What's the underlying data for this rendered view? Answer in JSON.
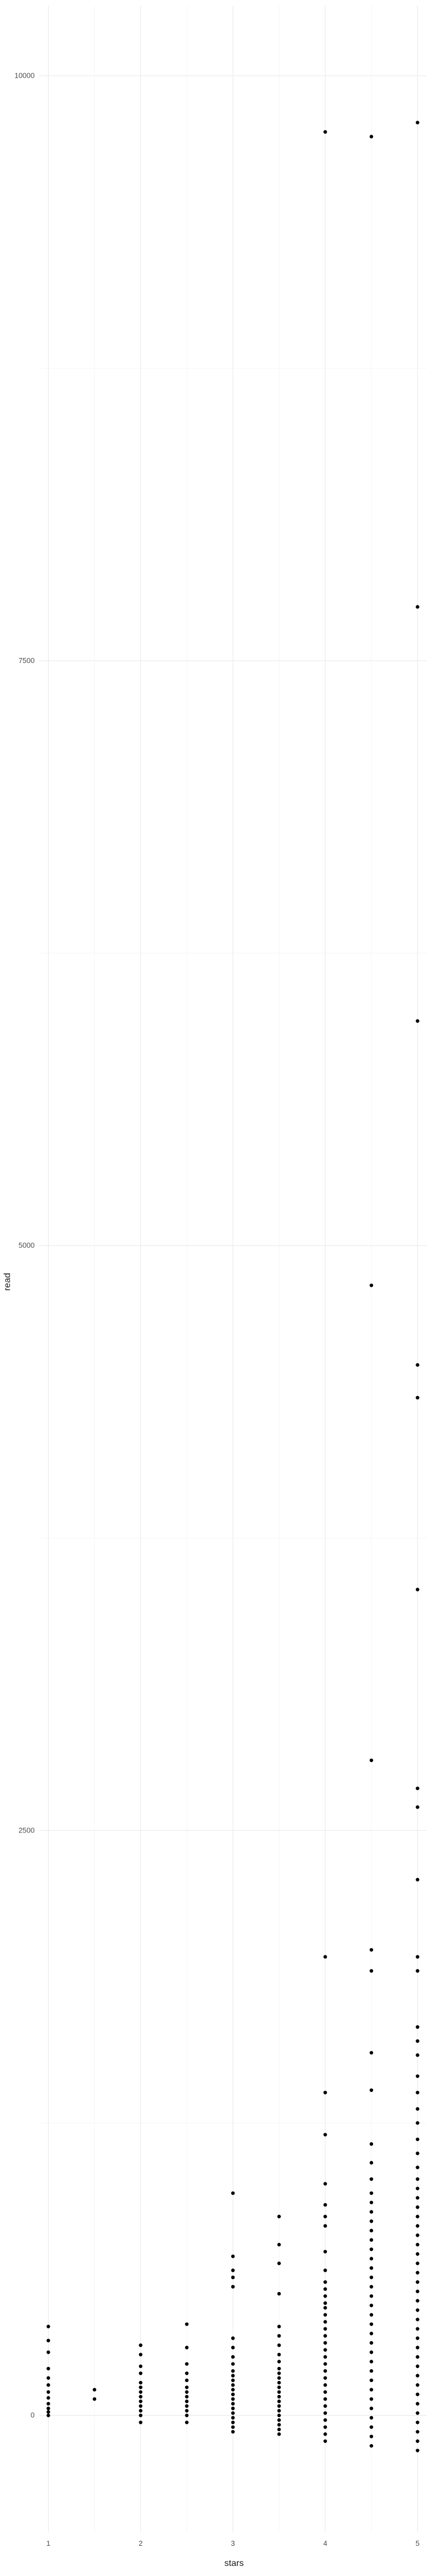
{
  "chart_data": {
    "type": "scatter",
    "title": "",
    "xlabel": "stars",
    "ylabel": "read",
    "xlim": [
      0.9,
      5.1
    ],
    "ylim": [
      -500,
      10300
    ],
    "x_ticks": [
      1,
      2,
      3,
      4,
      5
    ],
    "y_ticks": [
      0,
      2500,
      5000,
      7500,
      10000
    ],
    "grid": true,
    "legend": "none",
    "colors": {
      "point": "#000000",
      "grid_major": "#ebebeb",
      "grid_minor": "#f5f5f5"
    },
    "points": [
      {
        "x": 1,
        "y": 0
      },
      {
        "x": 1,
        "y": 15
      },
      {
        "x": 1,
        "y": 30
      },
      {
        "x": 1,
        "y": 50
      },
      {
        "x": 1,
        "y": 75
      },
      {
        "x": 1,
        "y": 100
      },
      {
        "x": 1,
        "y": 130
      },
      {
        "x": 1,
        "y": 160
      },
      {
        "x": 1,
        "y": 200
      },
      {
        "x": 1,
        "y": 270
      },
      {
        "x": 1,
        "y": 320
      },
      {
        "x": 1,
        "y": 380
      },
      {
        "x": 1.5,
        "y": 70
      },
      {
        "x": 1.5,
        "y": 110
      },
      {
        "x": 2,
        "y": -30
      },
      {
        "x": 2,
        "y": 0
      },
      {
        "x": 2,
        "y": 20
      },
      {
        "x": 2,
        "y": 40
      },
      {
        "x": 2,
        "y": 60
      },
      {
        "x": 2,
        "y": 80
      },
      {
        "x": 2,
        "y": 100
      },
      {
        "x": 2,
        "y": 120
      },
      {
        "x": 2,
        "y": 140
      },
      {
        "x": 2,
        "y": 180
      },
      {
        "x": 2,
        "y": 210
      },
      {
        "x": 2,
        "y": 260
      },
      {
        "x": 2,
        "y": 300
      },
      {
        "x": 2.5,
        "y": -30
      },
      {
        "x": 2.5,
        "y": 0
      },
      {
        "x": 2.5,
        "y": 20
      },
      {
        "x": 2.5,
        "y": 40
      },
      {
        "x": 2.5,
        "y": 60
      },
      {
        "x": 2.5,
        "y": 80
      },
      {
        "x": 2.5,
        "y": 100
      },
      {
        "x": 2.5,
        "y": 120
      },
      {
        "x": 2.5,
        "y": 150
      },
      {
        "x": 2.5,
        "y": 180
      },
      {
        "x": 2.5,
        "y": 220
      },
      {
        "x": 2.5,
        "y": 290
      },
      {
        "x": 2.5,
        "y": 390
      },
      {
        "x": 3,
        "y": -70
      },
      {
        "x": 3,
        "y": -50
      },
      {
        "x": 3,
        "y": -30
      },
      {
        "x": 3,
        "y": -10
      },
      {
        "x": 3,
        "y": 10
      },
      {
        "x": 3,
        "y": 30
      },
      {
        "x": 3,
        "y": 50
      },
      {
        "x": 3,
        "y": 70
      },
      {
        "x": 3,
        "y": 90
      },
      {
        "x": 3,
        "y": 110
      },
      {
        "x": 3,
        "y": 130
      },
      {
        "x": 3,
        "y": 150
      },
      {
        "x": 3,
        "y": 170
      },
      {
        "x": 3,
        "y": 190
      },
      {
        "x": 3,
        "y": 220
      },
      {
        "x": 3,
        "y": 250
      },
      {
        "x": 3,
        "y": 290
      },
      {
        "x": 3,
        "y": 330
      },
      {
        "x": 3,
        "y": 550
      },
      {
        "x": 3,
        "y": 590
      },
      {
        "x": 3,
        "y": 620
      },
      {
        "x": 3,
        "y": 680
      },
      {
        "x": 3,
        "y": 950
      },
      {
        "x": 3.5,
        "y": -80
      },
      {
        "x": 3.5,
        "y": -60
      },
      {
        "x": 3.5,
        "y": -40
      },
      {
        "x": 3.5,
        "y": -20
      },
      {
        "x": 3.5,
        "y": 0
      },
      {
        "x": 3.5,
        "y": 20
      },
      {
        "x": 3.5,
        "y": 40
      },
      {
        "x": 3.5,
        "y": 60
      },
      {
        "x": 3.5,
        "y": 80
      },
      {
        "x": 3.5,
        "y": 100
      },
      {
        "x": 3.5,
        "y": 120
      },
      {
        "x": 3.5,
        "y": 140
      },
      {
        "x": 3.5,
        "y": 160
      },
      {
        "x": 3.5,
        "y": 180
      },
      {
        "x": 3.5,
        "y": 200
      },
      {
        "x": 3.5,
        "y": 230
      },
      {
        "x": 3.5,
        "y": 260
      },
      {
        "x": 3.5,
        "y": 300
      },
      {
        "x": 3.5,
        "y": 340
      },
      {
        "x": 3.5,
        "y": 380
      },
      {
        "x": 3.5,
        "y": 520
      },
      {
        "x": 3.5,
        "y": 650
      },
      {
        "x": 3.5,
        "y": 730
      },
      {
        "x": 3.5,
        "y": 850
      },
      {
        "x": 4,
        "y": -110
      },
      {
        "x": 4,
        "y": -80
      },
      {
        "x": 4,
        "y": -50
      },
      {
        "x": 4,
        "y": -20
      },
      {
        "x": 4,
        "y": 10
      },
      {
        "x": 4,
        "y": 40
      },
      {
        "x": 4,
        "y": 70
      },
      {
        "x": 4,
        "y": 100
      },
      {
        "x": 4,
        "y": 130
      },
      {
        "x": 4,
        "y": 160
      },
      {
        "x": 4,
        "y": 190
      },
      {
        "x": 4,
        "y": 220
      },
      {
        "x": 4,
        "y": 250
      },
      {
        "x": 4,
        "y": 280
      },
      {
        "x": 4,
        "y": 310
      },
      {
        "x": 4,
        "y": 340
      },
      {
        "x": 4,
        "y": 370
      },
      {
        "x": 4,
        "y": 400
      },
      {
        "x": 4,
        "y": 430
      },
      {
        "x": 4,
        "y": 460
      },
      {
        "x": 4,
        "y": 480
      },
      {
        "x": 4,
        "y": 510
      },
      {
        "x": 4,
        "y": 540
      },
      {
        "x": 4,
        "y": 570
      },
      {
        "x": 4,
        "y": 620
      },
      {
        "x": 4,
        "y": 700
      },
      {
        "x": 4,
        "y": 810
      },
      {
        "x": 4,
        "y": 850
      },
      {
        "x": 4,
        "y": 900
      },
      {
        "x": 4,
        "y": 990
      },
      {
        "x": 4,
        "y": 1200
      },
      {
        "x": 4,
        "y": 1380
      },
      {
        "x": 4,
        "y": 1960
      },
      {
        "x": 4,
        "y": 9760
      },
      {
        "x": 4.5,
        "y": -130
      },
      {
        "x": 4.5,
        "y": -90
      },
      {
        "x": 4.5,
        "y": -50
      },
      {
        "x": 4.5,
        "y": -10
      },
      {
        "x": 4.5,
        "y": 30
      },
      {
        "x": 4.5,
        "y": 70
      },
      {
        "x": 4.5,
        "y": 110
      },
      {
        "x": 4.5,
        "y": 150
      },
      {
        "x": 4.5,
        "y": 190
      },
      {
        "x": 4.5,
        "y": 230
      },
      {
        "x": 4.5,
        "y": 270
      },
      {
        "x": 4.5,
        "y": 310
      },
      {
        "x": 4.5,
        "y": 350
      },
      {
        "x": 4.5,
        "y": 390
      },
      {
        "x": 4.5,
        "y": 430
      },
      {
        "x": 4.5,
        "y": 470
      },
      {
        "x": 4.5,
        "y": 510
      },
      {
        "x": 4.5,
        "y": 550
      },
      {
        "x": 4.5,
        "y": 590
      },
      {
        "x": 4.5,
        "y": 630
      },
      {
        "x": 4.5,
        "y": 670
      },
      {
        "x": 4.5,
        "y": 710
      },
      {
        "x": 4.5,
        "y": 750
      },
      {
        "x": 4.5,
        "y": 790
      },
      {
        "x": 4.5,
        "y": 830
      },
      {
        "x": 4.5,
        "y": 870
      },
      {
        "x": 4.5,
        "y": 910
      },
      {
        "x": 4.5,
        "y": 950
      },
      {
        "x": 4.5,
        "y": 1010
      },
      {
        "x": 4.5,
        "y": 1080
      },
      {
        "x": 4.5,
        "y": 1160
      },
      {
        "x": 4.5,
        "y": 1390
      },
      {
        "x": 4.5,
        "y": 1550
      },
      {
        "x": 4.5,
        "y": 1900
      },
      {
        "x": 4.5,
        "y": 1990
      },
      {
        "x": 4.5,
        "y": 2800
      },
      {
        "x": 4.5,
        "y": 4830
      },
      {
        "x": 4.5,
        "y": 9740
      },
      {
        "x": 5,
        "y": -150
      },
      {
        "x": 5,
        "y": -110
      },
      {
        "x": 5,
        "y": -70
      },
      {
        "x": 5,
        "y": -30
      },
      {
        "x": 5,
        "y": 10
      },
      {
        "x": 5,
        "y": 50
      },
      {
        "x": 5,
        "y": 90
      },
      {
        "x": 5,
        "y": 130
      },
      {
        "x": 5,
        "y": 170
      },
      {
        "x": 5,
        "y": 210
      },
      {
        "x": 5,
        "y": 250
      },
      {
        "x": 5,
        "y": 290
      },
      {
        "x": 5,
        "y": 330
      },
      {
        "x": 5,
        "y": 370
      },
      {
        "x": 5,
        "y": 410
      },
      {
        "x": 5,
        "y": 450
      },
      {
        "x": 5,
        "y": 490
      },
      {
        "x": 5,
        "y": 530
      },
      {
        "x": 5,
        "y": 570
      },
      {
        "x": 5,
        "y": 610
      },
      {
        "x": 5,
        "y": 650
      },
      {
        "x": 5,
        "y": 690
      },
      {
        "x": 5,
        "y": 730
      },
      {
        "x": 5,
        "y": 770
      },
      {
        "x": 5,
        "y": 810
      },
      {
        "x": 5,
        "y": 850
      },
      {
        "x": 5,
        "y": 890
      },
      {
        "x": 5,
        "y": 930
      },
      {
        "x": 5,
        "y": 970
      },
      {
        "x": 5,
        "y": 1010
      },
      {
        "x": 5,
        "y": 1060
      },
      {
        "x": 5,
        "y": 1120
      },
      {
        "x": 5,
        "y": 1180
      },
      {
        "x": 5,
        "y": 1250
      },
      {
        "x": 5,
        "y": 1310
      },
      {
        "x": 5,
        "y": 1380
      },
      {
        "x": 5,
        "y": 1450
      },
      {
        "x": 5,
        "y": 1540
      },
      {
        "x": 5,
        "y": 1600
      },
      {
        "x": 5,
        "y": 1660
      },
      {
        "x": 5,
        "y": 1900
      },
      {
        "x": 5,
        "y": 1960
      },
      {
        "x": 5,
        "y": 2290
      },
      {
        "x": 5,
        "y": 2600
      },
      {
        "x": 5,
        "y": 2680
      },
      {
        "x": 5,
        "y": 3530
      },
      {
        "x": 5,
        "y": 4350
      },
      {
        "x": 5,
        "y": 4490
      },
      {
        "x": 5,
        "y": 5960
      },
      {
        "x": 5,
        "y": 7730
      },
      {
        "x": 5,
        "y": 9800
      }
    ]
  }
}
